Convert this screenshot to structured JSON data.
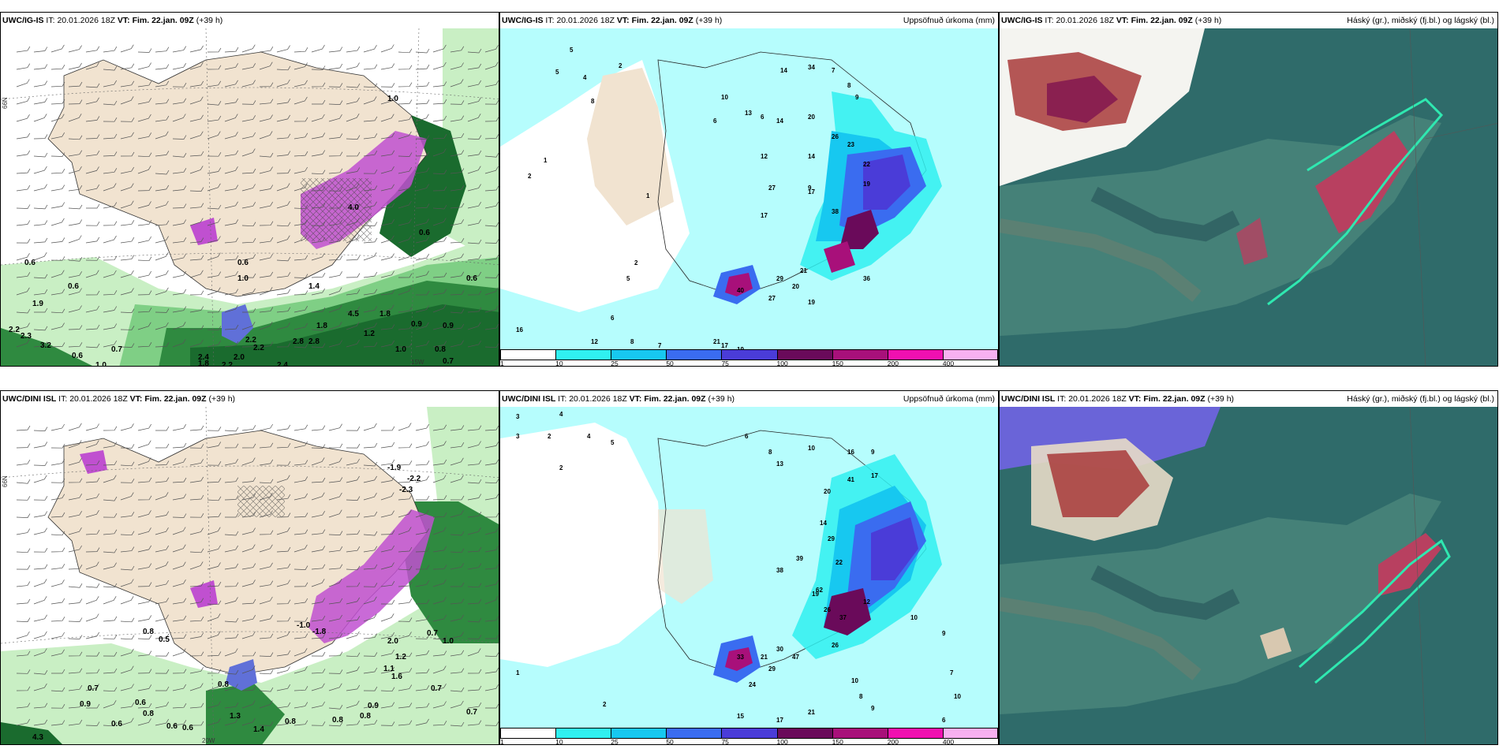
{
  "rows": [
    {
      "model": "UWC/IG-IS",
      "it_label": "IT:",
      "it_value": "20.01.2026 18Z",
      "vt_label": "VT:",
      "vt_value": "Fim. 22.jan. 09Z",
      "lead": "(+39 h)",
      "p1_labels": [
        "1.0",
        "0.6",
        "0.6",
        "0.6",
        "0.7",
        "2.2",
        "2.3",
        "3.2",
        "1.0",
        "0.6",
        "1.9",
        "4.0",
        "1.0",
        "4.5",
        "2.8",
        "2.8",
        "2.4",
        "2.0",
        "2.2",
        "2.2",
        "2.2",
        "2.4",
        "1.8",
        "1.2",
        "1.0",
        "1.8",
        "0.9",
        "0.8",
        "0.7",
        "0.6",
        "0.6",
        "0.9",
        "1.8",
        "1.4"
      ],
      "p1_lon_label": "15W",
      "p1_lat_label": "66N",
      "p2_labels": [
        "5",
        "2",
        "5",
        "4",
        "8",
        "2",
        "1",
        "10",
        "13",
        "6",
        "14",
        "14",
        "34",
        "7",
        "8",
        "9",
        "20",
        "26",
        "23",
        "22",
        "19",
        "17",
        "27",
        "17",
        "12",
        "14",
        "9",
        "6",
        "21",
        "38",
        "36",
        "27",
        "19",
        "20",
        "29",
        "21",
        "12",
        "16",
        "8",
        "7",
        "17",
        "19",
        "6",
        "5",
        "2",
        "1",
        "40"
      ],
      "p3_right_title": "Háský (gr.), miðský (fj.bl.) og lágský (bl.)"
    },
    {
      "model": "UWC/DINI ISL",
      "it_label": "IT:",
      "it_value": "20.01.2026 18Z",
      "vt_label": "VT:",
      "vt_value": "Fim. 22.jan. 09Z",
      "lead": "(+39 h)",
      "p1_labels": [
        "-1.9",
        "-2.2",
        "-2.3",
        "-1.0",
        "-1.8",
        "0.8",
        "0.5",
        "0.7",
        "0.9",
        "0.6",
        "0.8",
        "0.6",
        "0.6",
        "0.6",
        "4.3",
        "1.3",
        "1.4",
        "0.8",
        "0.8",
        "0.8",
        "0.9",
        "0.7",
        "0.7",
        "1.0",
        "1.1",
        "1.6",
        "1.2",
        "2.0",
        "0.8",
        "0.7"
      ],
      "p1_lon_label": "20W",
      "p1_lat_label": "66N",
      "p2_labels": [
        "3",
        "4",
        "2",
        "3",
        "4",
        "5",
        "2",
        "13",
        "8",
        "6",
        "10",
        "16",
        "41",
        "9",
        "17",
        "20",
        "14",
        "29",
        "22",
        "19",
        "26",
        "39",
        "38",
        "62",
        "37",
        "47",
        "29",
        "24",
        "33",
        "30",
        "21",
        "26",
        "12",
        "10",
        "9",
        "7",
        "10",
        "8",
        "9",
        "6",
        "5",
        "2",
        "1",
        "15",
        "17",
        "21",
        "10"
      ],
      "p3_right_title": "Háský (gr.), miðský (fj.bl.) og lágský (bl.)"
    }
  ],
  "p2_right_title": "Uppsöfnuð úrkoma (mm)",
  "colorbar": {
    "labels": [
      "1",
      "10",
      "25",
      "50",
      "75",
      "100",
      "150",
      "200",
      "400"
    ],
    "colors": [
      "#ffffff",
      "#30f0f0",
      "#17c8f0",
      "#3a6cf0",
      "#4a3cd8",
      "#6a0a5a",
      "#a8107a",
      "#f010b0",
      "#f7b0f0"
    ]
  },
  "colors": {
    "land": "#f1e3d0",
    "sea_p2": "#b6fdfd",
    "cloud_bg": "#2f6b6a",
    "green_light": "#c9efc4",
    "green_dark": "#1a6b2e",
    "magenta": "#c050d0"
  }
}
